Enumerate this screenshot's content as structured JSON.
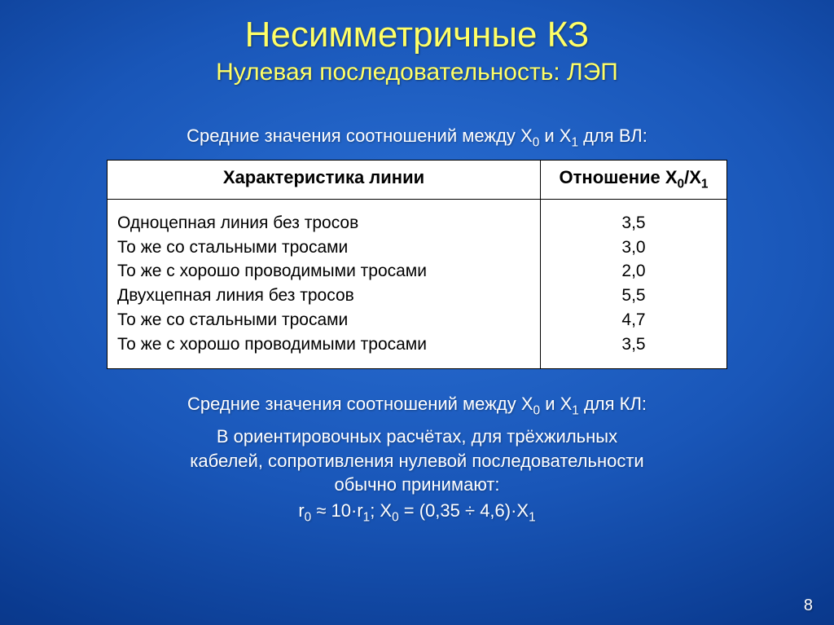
{
  "title_main": "Несимметричные КЗ",
  "title_sub": "Нулевая последовательность: ЛЭП",
  "caption_vl_pre": "Средние значения соотношений между X",
  "caption_vl_mid": " и X",
  "caption_vl_post": " для ВЛ:",
  "table": {
    "header_left": "Характеристика линии",
    "header_right_pre": "Отношение X",
    "header_right_mid": "/X",
    "rows": [
      {
        "label": "Одноцепная линия без тросов",
        "value": "3,5"
      },
      {
        "label": "То же со стальными тросами",
        "value": "3,0"
      },
      {
        "label": "То же с хорошо проводимыми тросами",
        "value": "2,0"
      },
      {
        "label": "Двухцепная линия без тросов",
        "value": "5,5"
      },
      {
        "label": "То же со стальными тросами",
        "value": "4,7"
      },
      {
        "label": "То же с хорошо проводимыми тросами",
        "value": "3,5"
      }
    ]
  },
  "caption_kl_pre": "Средние значения соотношений между X",
  "caption_kl_mid": " и X",
  "caption_kl_post": " для КЛ:",
  "body_line1": "В ориентировочных расчётах, для трёхжильных",
  "body_line2": "кабелей, сопротивления нулевой последовательности",
  "body_line3": "обычно принимают:",
  "formula_r_pre": "r",
  "formula_r_approx": " ≈ 10·r",
  "formula_sep": ";   X",
  "formula_x_expr": " = (0,35 ÷ 4,6)·X",
  "page_number": "8",
  "sub0": "0",
  "sub1": "1"
}
